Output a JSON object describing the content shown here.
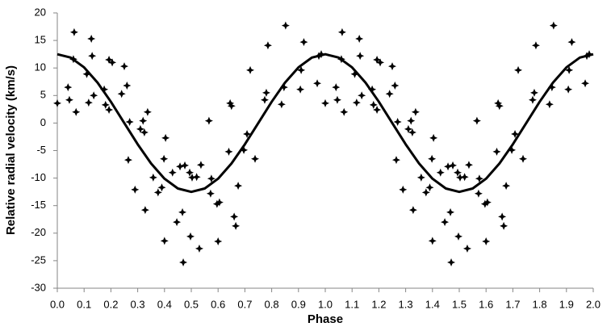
{
  "chart_data": {
    "type": "scatter",
    "x_label": "Phase",
    "y_label": "Relative radial velocity (km/s)",
    "xlim": [
      0,
      2
    ],
    "ylim": [
      -30,
      20
    ],
    "xticks": [
      {
        "value": 0,
        "label": "0.0"
      },
      0.1,
      0.2,
      0.3,
      0.4,
      0.5,
      0.6,
      0.7,
      0.8,
      0.9,
      {
        "value": 1,
        "label": "1.0"
      },
      1.1,
      1.2,
      1.3,
      1.4,
      1.5,
      1.6,
      1.7,
      1.8,
      1.9,
      {
        "value": 2,
        "label": "2.0"
      }
    ],
    "yticks": [
      20,
      15,
      10,
      5,
      0,
      -5,
      -10,
      -15,
      -20,
      -25,
      -30
    ],
    "grid": false,
    "series": [
      {
        "type": "scatter",
        "color": "#000000",
        "x": [
          0,
          0.04,
          0.045,
          0.06,
          0.063,
          0.07,
          0.11,
          0.117,
          0.127,
          0.13,
          0.136,
          0.175,
          0.18,
          0.193,
          0.193,
          0.205,
          0.24,
          0.25,
          0.26,
          0.265,
          0.27,
          0.29,
          0.31,
          0.32,
          0.325,
          0.328,
          0.337,
          0.358,
          0.376,
          0.39,
          0.398,
          0.4,
          0.404,
          0.43,
          0.446,
          0.458,
          0.467,
          0.47,
          0.476,
          0.494,
          0.497,
          0.503,
          0.52,
          0.53,
          0.536,
          0.566,
          0.572,
          0.575,
          0.596,
          0.6,
          0.605,
          0.64,
          0.645,
          0.65,
          0.66,
          0.666,
          0.675,
          0.696,
          0.708,
          0.72,
          0.738,
          0.774,
          0.78,
          0.786,
          0.837,
          0.846,
          0.852,
          0.907,
          0.91,
          0.92,
          0.97,
          0.976,
          0.985,
          1.0,
          1.04,
          1.045,
          1.06,
          1.063,
          1.07,
          1.11,
          1.117,
          1.127,
          1.13,
          1.136,
          1.175,
          1.18,
          1.193,
          1.193,
          1.205,
          1.24,
          1.25,
          1.26,
          1.265,
          1.27,
          1.29,
          1.31,
          1.32,
          1.325,
          1.328,
          1.337,
          1.358,
          1.376,
          1.39,
          1.398,
          1.4,
          1.404,
          1.43,
          1.446,
          1.458,
          1.467,
          1.47,
          1.476,
          1.494,
          1.497,
          1.503,
          1.52,
          1.53,
          1.536,
          1.566,
          1.572,
          1.575,
          1.596,
          1.6,
          1.605,
          1.64,
          1.645,
          1.65,
          1.66,
          1.666,
          1.675,
          1.696,
          1.708,
          1.72,
          1.738,
          1.774,
          1.78,
          1.786,
          1.837,
          1.846,
          1.852,
          1.907,
          1.91,
          1.92,
          1.97,
          1.976,
          1.985
        ],
        "values": [
          3.6,
          6.5,
          4.2,
          11.6,
          16.5,
          2.0,
          8.9,
          3.7,
          15.3,
          12.2,
          5.0,
          6.1,
          3.3,
          2.4,
          11.5,
          11.0,
          5.3,
          10.3,
          6.8,
          -6.7,
          0.2,
          -12.1,
          -1.1,
          0.4,
          -1.7,
          -15.8,
          2.0,
          -9.9,
          -12.6,
          -11.7,
          -6.5,
          -21.4,
          -2.7,
          -9.0,
          -18.0,
          -7.9,
          -16.2,
          -25.3,
          -7.7,
          -9.0,
          -20.6,
          -9.9,
          -9.8,
          -22.8,
          -7.6,
          0.4,
          -12.8,
          -10.1,
          -14.7,
          -21.5,
          -14.4,
          -5.2,
          3.6,
          3.1,
          -17.0,
          -18.7,
          -11.4,
          -4.9,
          -2.0,
          9.6,
          -6.5,
          4.2,
          5.5,
          14.1,
          3.4,
          6.5,
          17.7,
          6.1,
          9.6,
          14.7,
          7.2,
          12.2,
          12.5,
          3.6,
          6.5,
          4.2,
          11.6,
          16.5,
          2.0,
          8.9,
          3.7,
          15.3,
          12.2,
          5.0,
          6.1,
          3.3,
          2.4,
          11.5,
          11.0,
          5.3,
          10.3,
          6.8,
          -6.7,
          0.2,
          -12.1,
          -1.1,
          0.4,
          -1.7,
          -15.8,
          2.0,
          -9.9,
          -12.6,
          -11.7,
          -6.5,
          -21.4,
          -2.7,
          -9.0,
          -18.0,
          -7.9,
          -16.2,
          -25.3,
          -7.7,
          -9.0,
          -20.6,
          -9.9,
          -9.8,
          -22.8,
          -7.6,
          0.4,
          -12.8,
          -10.1,
          -14.7,
          -21.5,
          -14.4,
          -5.2,
          3.6,
          3.1,
          -17.0,
          -18.7,
          -11.4,
          -4.9,
          -2.0,
          9.6,
          -6.5,
          4.2,
          5.5,
          14.1,
          3.4,
          6.5,
          17.7,
          6.1,
          9.6,
          14.7,
          7.2,
          12.2,
          12.5
        ]
      },
      {
        "type": "line",
        "color": "#000000",
        "x": [
          0,
          0.05,
          0.1,
          0.15,
          0.2,
          0.25,
          0.3,
          0.35,
          0.4,
          0.45,
          0.5,
          0.55,
          0.6,
          0.65,
          0.7,
          0.75,
          0.8,
          0.85,
          0.9,
          0.95,
          1.0,
          1.05,
          1.1,
          1.15,
          1.2,
          1.25,
          1.3,
          1.35,
          1.4,
          1.45,
          1.5,
          1.55,
          1.6,
          1.65,
          1.7,
          1.75,
          1.8,
          1.85,
          1.9,
          1.95,
          2.0
        ],
        "values": [
          12.5,
          11.89,
          10.11,
          7.35,
          3.86,
          0,
          -3.86,
          -7.35,
          -10.11,
          -11.89,
          -12.5,
          -11.89,
          -10.11,
          -7.35,
          -3.86,
          0,
          3.86,
          7.35,
          10.11,
          11.89,
          12.5,
          11.89,
          10.11,
          7.35,
          3.86,
          0,
          -3.86,
          -7.35,
          -10.11,
          -11.89,
          -12.5,
          -11.89,
          -10.11,
          -7.35,
          -3.86,
          0,
          3.86,
          7.35,
          10.11,
          11.89,
          12.5
        ]
      }
    ]
  }
}
